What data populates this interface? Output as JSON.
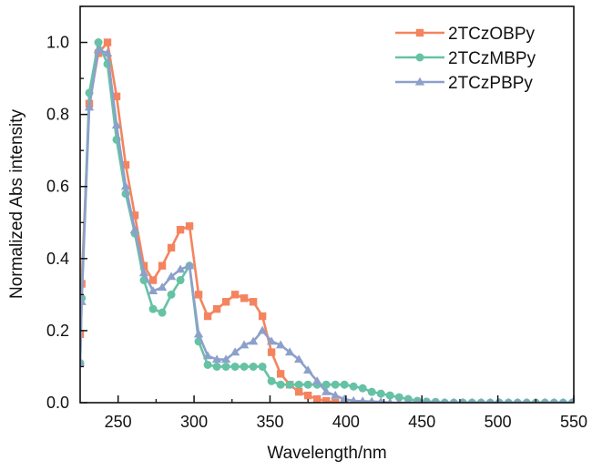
{
  "chart_data": {
    "type": "line",
    "title": "",
    "xlabel": "Wavelength/nm",
    "ylabel": "Normalized Abs intensity",
    "xlim": [
      225,
      550
    ],
    "ylim": [
      0.0,
      1.1
    ],
    "xticks": [
      250,
      300,
      350,
      400,
      450,
      500,
      550
    ],
    "xtick_labels": [
      "250",
      "300",
      "350",
      "400",
      "450",
      "500",
      "550"
    ],
    "yticks": [
      0.0,
      0.2,
      0.4,
      0.6,
      0.8,
      1.0
    ],
    "ytick_labels": [
      "0.0",
      "0.2",
      "0.4",
      "0.6",
      "0.8",
      "1.0"
    ],
    "grid": false,
    "legend_position": "top-right",
    "series": [
      {
        "name": "2TCzOBPy",
        "color": "#F4845F",
        "marker": "square",
        "x": [
          225,
          226,
          231,
          237,
          243,
          249,
          255,
          261,
          267,
          273,
          279,
          285,
          291,
          297,
          303,
          309,
          315,
          321,
          327,
          333,
          339,
          345,
          351,
          357,
          363,
          369,
          375,
          381,
          387,
          393,
          399
        ],
        "y": [
          0.19,
          0.33,
          0.83,
          0.97,
          1.0,
          0.85,
          0.66,
          0.52,
          0.38,
          0.34,
          0.38,
          0.43,
          0.48,
          0.49,
          0.3,
          0.24,
          0.26,
          0.28,
          0.3,
          0.29,
          0.28,
          0.24,
          0.14,
          0.08,
          0.05,
          0.03,
          0.02,
          0.01,
          0.005,
          0.0,
          0.0
        ]
      },
      {
        "name": "2TCzMBPy",
        "color": "#66C2A5",
        "marker": "circle",
        "x": [
          225,
          226,
          231,
          237,
          243,
          249,
          255,
          261,
          267,
          273,
          279,
          285,
          291,
          297,
          303,
          309,
          315,
          321,
          327,
          333,
          339,
          345,
          351,
          357,
          363,
          369,
          375,
          381,
          387,
          393,
          399,
          405,
          411,
          417,
          423,
          429,
          435,
          441,
          447,
          453,
          459,
          465,
          471,
          477,
          483,
          489,
          495,
          501,
          507,
          513,
          519,
          525,
          531,
          537,
          543,
          549
        ],
        "y": [
          0.11,
          0.29,
          0.86,
          1.0,
          0.94,
          0.73,
          0.58,
          0.47,
          0.34,
          0.26,
          0.25,
          0.3,
          0.34,
          0.38,
          0.17,
          0.105,
          0.1,
          0.1,
          0.1,
          0.1,
          0.1,
          0.1,
          0.06,
          0.05,
          0.05,
          0.05,
          0.05,
          0.05,
          0.05,
          0.05,
          0.05,
          0.045,
          0.04,
          0.03,
          0.025,
          0.02,
          0.015,
          0.01,
          0.005,
          0.003,
          0.002,
          0.0,
          0.0,
          0.0,
          0.0,
          0.0,
          0.0,
          0.0,
          0.0,
          0.0,
          0.0,
          0.0,
          0.0,
          0.0,
          0.0,
          0.0
        ]
      },
      {
        "name": "2TCzPBPy",
        "color": "#8DA0CB",
        "marker": "triangle",
        "x": [
          225,
          226,
          231,
          237,
          243,
          249,
          255,
          261,
          267,
          273,
          279,
          285,
          291,
          297,
          303,
          309,
          315,
          321,
          327,
          333,
          339,
          345,
          351,
          357,
          363,
          369,
          375,
          381,
          387,
          393,
          399,
          405,
          411,
          417,
          423,
          429,
          435,
          441,
          447,
          453,
          459,
          465,
          471,
          477,
          483,
          489,
          495,
          501,
          507,
          513,
          519,
          525,
          531,
          537,
          543,
          549
        ],
        "y": [
          0.11,
          0.28,
          0.82,
          0.98,
          0.97,
          0.77,
          0.6,
          0.48,
          0.36,
          0.31,
          0.32,
          0.35,
          0.37,
          0.38,
          0.19,
          0.13,
          0.12,
          0.12,
          0.14,
          0.16,
          0.17,
          0.2,
          0.17,
          0.16,
          0.14,
          0.12,
          0.09,
          0.06,
          0.03,
          0.02,
          0.01,
          0.005,
          0.004,
          0.003,
          0.002,
          0.0,
          0.0,
          0.0,
          0.0,
          0.0,
          0.0,
          0.0,
          0.0,
          0.0,
          0.0,
          0.0,
          0.0,
          0.0,
          0.0,
          0.0,
          0.0,
          0.0,
          0.0,
          0.0,
          0.0,
          0.0
        ]
      }
    ]
  }
}
